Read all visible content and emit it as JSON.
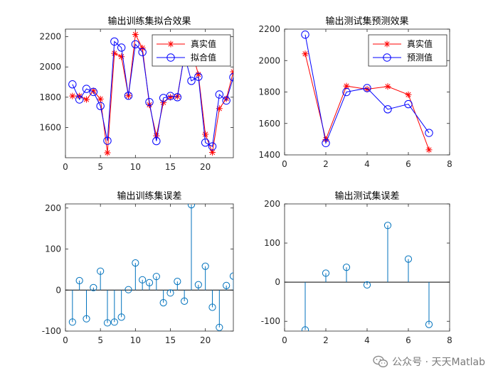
{
  "chart_data": [
    {
      "type": "line",
      "title": "输出训练集拟合效果",
      "xlabel": "",
      "ylabel": "",
      "xlim": [
        0,
        24
      ],
      "ylim": [
        1400,
        2250
      ],
      "xticks": [
        0,
        5,
        10,
        15,
        20
      ],
      "yticks": [
        1600,
        1800,
        2000,
        2200
      ],
      "legend_position": "top-right",
      "x": [
        1,
        2,
        3,
        4,
        5,
        6,
        7,
        8,
        9,
        10,
        11,
        12,
        13,
        14,
        15,
        16,
        17,
        18,
        19,
        20,
        21,
        22,
        23,
        24
      ],
      "series": [
        {
          "name": "真实值",
          "color": "#ff0000",
          "marker": "star",
          "values": [
            1808,
            1808,
            1785,
            1842,
            1788,
            1433,
            2090,
            2068,
            1810,
            2215,
            2125,
            1750,
            1545,
            1765,
            1800,
            1805,
            2080,
            2118,
            1950,
            1555,
            1435,
            1725,
            1790,
            1968
          ]
        },
        {
          "name": "拟合值",
          "color": "#0000ff",
          "marker": "circle",
          "values": [
            1885,
            1785,
            1855,
            1835,
            1742,
            1512,
            2168,
            2128,
            1810,
            2150,
            2098,
            1768,
            1510,
            1795,
            1808,
            1800,
            2078,
            1908,
            1935,
            1500,
            1475,
            1818,
            1778,
            1932
          ]
        }
      ]
    },
    {
      "type": "line",
      "title": "输出测试集预测效果",
      "xlabel": "",
      "ylabel": "",
      "xlim": [
        0,
        8
      ],
      "ylim": [
        1400,
        2200
      ],
      "xticks": [
        0,
        2,
        4,
        6,
        8
      ],
      "yticks": [
        1400,
        1600,
        1800,
        2000,
        2200
      ],
      "legend_position": "top-right",
      "x": [
        1,
        2,
        3,
        4,
        5,
        6,
        7
      ],
      "series": [
        {
          "name": "真实值",
          "color": "#ff0000",
          "marker": "star",
          "values": [
            2043,
            1498,
            1838,
            1818,
            1835,
            1783,
            1432
          ]
        },
        {
          "name": "预测值",
          "color": "#0000ff",
          "marker": "circle",
          "values": [
            2165,
            1475,
            1800,
            1825,
            1690,
            1723,
            1540
          ]
        }
      ]
    },
    {
      "type": "stem",
      "title": "输出训练集误差",
      "xlabel": "",
      "ylabel": "",
      "xlim": [
        0,
        24
      ],
      "ylim": [
        -100,
        210
      ],
      "xticks": [
        0,
        5,
        10,
        15,
        20
      ],
      "yticks": [
        -100,
        0,
        100,
        200
      ],
      "color": "#0072bd",
      "x": [
        1,
        2,
        3,
        4,
        5,
        6,
        7,
        8,
        9,
        10,
        11,
        12,
        13,
        14,
        15,
        16,
        17,
        18,
        19,
        20,
        21,
        22,
        23,
        24
      ],
      "values": [
        -78,
        23,
        -70,
        6,
        46,
        -80,
        -78,
        -66,
        1,
        66,
        25,
        18,
        33,
        -31,
        -7,
        21,
        -27,
        208,
        13,
        58,
        -42,
        -91,
        11,
        34
      ]
    },
    {
      "type": "stem",
      "title": "输出测试集误差",
      "xlabel": "",
      "ylabel": "",
      "xlim": [
        0,
        8
      ],
      "ylim": [
        -125,
        200
      ],
      "xticks": [
        0,
        2,
        4,
        6,
        8
      ],
      "yticks": [
        -100,
        0,
        100,
        200
      ],
      "color": "#0072bd",
      "x": [
        1,
        2,
        3,
        4,
        5,
        6,
        7
      ],
      "values": [
        -122,
        23,
        38,
        -7,
        145,
        59,
        -108
      ]
    }
  ],
  "watermark": {
    "text": "公众号 · 天天Matlab",
    "icon": "wechat-icon"
  }
}
